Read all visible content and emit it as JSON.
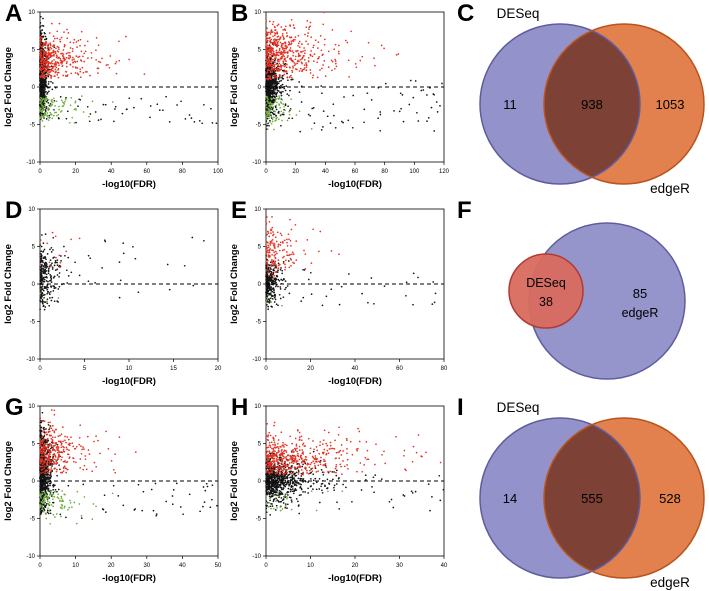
{
  "styles": {
    "background": "#ffffff",
    "point_colors": {
      "black": "#141414",
      "red": "#e63323",
      "green": "#6fae3e"
    },
    "venn": {
      "blue": "#8b89c5",
      "blueStroke": "#5f5d9e",
      "orange": "#e0763f",
      "orangeStroke": "#b9541f",
      "overlap": "#7d4136",
      "red": "#d96a5e",
      "redStroke": "#b03a33",
      "label_color": "#000000"
    }
  },
  "chart_data": [
    {
      "panel_letter": "A",
      "type": "scatter",
      "xlabel": "-log10(FDR)",
      "ylabel": "log2 Fold Change",
      "xlim": [
        0,
        100
      ],
      "ylim": [
        -10,
        10
      ],
      "xticks": [
        0,
        20,
        40,
        60,
        80,
        100
      ],
      "yticks": [
        -10,
        -5,
        0,
        5,
        10
      ],
      "hline": 0,
      "seed": 11,
      "clusters": [
        {
          "color": "black",
          "n": 900,
          "x": {
            "dist": "exp",
            "scale": 1.2,
            "max": 9
          },
          "y": {
            "dist": "normal",
            "mean": 1.3,
            "sd": 2.7,
            "min": -4.5,
            "max": 9.5
          }
        },
        {
          "color": "black",
          "n": 50,
          "x": {
            "dist": "uniform",
            "min": 2,
            "max": 100
          },
          "y": {
            "dist": "uniform",
            "min": -5,
            "max": -1
          }
        },
        {
          "color": "green",
          "n": 110,
          "x": {
            "dist": "exp",
            "scale": 7,
            "max": 42
          },
          "y": {
            "dist": "normal",
            "mean": -2.6,
            "sd": 1.1,
            "min": -6.5,
            "max": -1.2
          }
        },
        {
          "color": "red",
          "n": 380,
          "x": {
            "dist": "exp",
            "scale": 10,
            "max": 62
          },
          "y": {
            "dist": "normal",
            "mean": 3.4,
            "sd": 1.8,
            "min": 1.2,
            "max": 9.3
          }
        }
      ]
    },
    {
      "panel_letter": "B",
      "type": "scatter",
      "xlabel": "-log10(FDR)",
      "ylabel": "log2 Fold Change",
      "xlim": [
        0,
        120
      ],
      "ylim": [
        -10,
        10
      ],
      "xticks": [
        0,
        20,
        40,
        60,
        80,
        100,
        120
      ],
      "yticks": [
        -10,
        -5,
        0,
        5,
        10
      ],
      "hline": 0,
      "seed": 22,
      "clusters": [
        {
          "color": "black",
          "n": 900,
          "x": {
            "dist": "exp",
            "scale": 3,
            "max": 45
          },
          "y": {
            "dist": "normal",
            "mean": 0.3,
            "sd": 1.9,
            "min": -6,
            "max": 7
          }
        },
        {
          "color": "black",
          "n": 70,
          "x": {
            "dist": "uniform",
            "min": 5,
            "max": 120
          },
          "y": {
            "dist": "uniform",
            "min": -6,
            "max": 1
          }
        },
        {
          "color": "green",
          "n": 90,
          "x": {
            "dist": "exp",
            "scale": 6,
            "max": 40
          },
          "y": {
            "dist": "normal",
            "mean": -2.8,
            "sd": 1.2,
            "min": -7,
            "max": -1.2
          }
        },
        {
          "color": "red",
          "n": 520,
          "x": {
            "dist": "exp",
            "scale": 14,
            "max": 118
          },
          "y": {
            "dist": "normal",
            "mean": 4.2,
            "sd": 2.0,
            "min": 1,
            "max": 10
          }
        }
      ]
    },
    {
      "panel_letter": "C",
      "type": "venn",
      "variant": "overlap",
      "left": {
        "name": "DESeq",
        "unique": 11
      },
      "right": {
        "name": "edgeR",
        "unique": 1053
      },
      "overlap": 938
    },
    {
      "panel_letter": "D",
      "type": "scatter",
      "xlabel": "-log10(FDR)",
      "ylabel": "log2 Fold Change",
      "xlim": [
        0,
        20
      ],
      "ylim": [
        -10,
        10
      ],
      "xticks": [
        0,
        5,
        10,
        15,
        20
      ],
      "yticks": [
        -10,
        -5,
        0,
        5,
        10
      ],
      "hline": 0,
      "seed": 33,
      "clusters": [
        {
          "color": "black",
          "n": 260,
          "x": {
            "dist": "exp",
            "scale": 0.7,
            "max": 18
          },
          "y": {
            "dist": "normal",
            "mean": 1.0,
            "sd": 2.4,
            "min": -3.5,
            "max": 8
          }
        },
        {
          "color": "black",
          "n": 26,
          "x": {
            "dist": "uniform",
            "min": 1,
            "max": 19.5
          },
          "y": {
            "dist": "uniform",
            "min": -2,
            "max": 6.5
          }
        },
        {
          "color": "green",
          "n": 4,
          "x": {
            "dist": "exp",
            "scale": 1.2,
            "max": 5
          },
          "y": {
            "dist": "uniform",
            "min": -2.6,
            "max": -1.2
          }
        },
        {
          "color": "red",
          "n": 14,
          "x": {
            "dist": "exp",
            "scale": 1.5,
            "max": 7
          },
          "y": {
            "dist": "uniform",
            "min": 2,
            "max": 7
          }
        }
      ]
    },
    {
      "panel_letter": "E",
      "type": "scatter",
      "xlabel": "-log10(FDR)",
      "ylabel": "log2 Fold Change",
      "xlim": [
        0,
        80
      ],
      "ylim": [
        -10,
        10
      ],
      "xticks": [
        0,
        20,
        40,
        60,
        80
      ],
      "yticks": [
        -10,
        -5,
        0,
        5,
        10
      ],
      "hline": 0,
      "seed": 44,
      "clusters": [
        {
          "color": "black",
          "n": 330,
          "x": {
            "dist": "exp",
            "scale": 2.2,
            "max": 75
          },
          "y": {
            "dist": "normal",
            "mean": 0.2,
            "sd": 1.4,
            "min": -4,
            "max": 4
          }
        },
        {
          "color": "black",
          "n": 26,
          "x": {
            "dist": "uniform",
            "min": 4,
            "max": 78
          },
          "y": {
            "dist": "uniform",
            "min": -3,
            "max": 2
          }
        },
        {
          "color": "green",
          "n": 6,
          "x": {
            "dist": "exp",
            "scale": 2,
            "max": 8
          },
          "y": {
            "dist": "uniform",
            "min": -3,
            "max": -1.2
          }
        },
        {
          "color": "red",
          "n": 160,
          "x": {
            "dist": "exp",
            "scale": 6,
            "max": 34
          },
          "y": {
            "dist": "normal",
            "mean": 4.4,
            "sd": 1.7,
            "min": 1,
            "max": 9.5
          }
        }
      ]
    },
    {
      "panel_letter": "F",
      "type": "venn",
      "variant": "nested",
      "outer": {
        "name": "edgeR",
        "count": 85
      },
      "inner": {
        "name": "DESeq",
        "count": 38
      }
    },
    {
      "panel_letter": "G",
      "type": "scatter",
      "xlabel": "-log10(FDR)",
      "ylabel": "log2 Fold Change",
      "xlim": [
        0,
        50
      ],
      "ylim": [
        -10,
        10
      ],
      "xticks": [
        0,
        10,
        20,
        30,
        40,
        50
      ],
      "yticks": [
        -10,
        -5,
        0,
        5,
        10
      ],
      "hline": 0,
      "seed": 55,
      "clusters": [
        {
          "color": "black",
          "n": 850,
          "x": {
            "dist": "exp",
            "scale": 1.0,
            "max": 8
          },
          "y": {
            "dist": "normal",
            "mean": 1.1,
            "sd": 2.7,
            "min": -4.5,
            "max": 9.3
          }
        },
        {
          "color": "black",
          "n": 45,
          "x": {
            "dist": "uniform",
            "min": 1,
            "max": 50
          },
          "y": {
            "dist": "uniform",
            "min": -5,
            "max": 0
          }
        },
        {
          "color": "green",
          "n": 100,
          "x": {
            "dist": "exp",
            "scale": 3.5,
            "max": 24
          },
          "y": {
            "dist": "normal",
            "mean": -2.6,
            "sd": 1.1,
            "min": -6,
            "max": -1.2
          }
        },
        {
          "color": "red",
          "n": 330,
          "x": {
            "dist": "exp",
            "scale": 5,
            "max": 46
          },
          "y": {
            "dist": "normal",
            "mean": 3.8,
            "sd": 1.9,
            "min": 1,
            "max": 9.5
          }
        }
      ]
    },
    {
      "panel_letter": "H",
      "type": "scatter",
      "xlabel": "-log10(FDR)",
      "ylabel": "log2 Fold Change",
      "xlim": [
        0,
        40
      ],
      "ylim": [
        -10,
        10
      ],
      "xticks": [
        0,
        10,
        20,
        30,
        40
      ],
      "yticks": [
        -10,
        -5,
        0,
        5,
        10
      ],
      "hline": 0,
      "seed": 66,
      "clusters": [
        {
          "color": "black",
          "n": 800,
          "x": {
            "dist": "exp",
            "scale": 3.5,
            "max": 32
          },
          "y": {
            "dist": "normal",
            "mean": 0.2,
            "sd": 1.4,
            "min": -5,
            "max": 5
          }
        },
        {
          "color": "black",
          "n": 40,
          "x": {
            "dist": "uniform",
            "min": 2,
            "max": 40
          },
          "y": {
            "dist": "uniform",
            "min": -4,
            "max": 1
          }
        },
        {
          "color": "green",
          "n": 25,
          "x": {
            "dist": "exp",
            "scale": 4,
            "max": 20
          },
          "y": {
            "dist": "uniform",
            "min": -4,
            "max": -1.2
          }
        },
        {
          "color": "red",
          "n": 480,
          "x": {
            "dist": "exp",
            "scale": 7,
            "max": 40
          },
          "y": {
            "dist": "normal",
            "mean": 2.9,
            "sd": 1.6,
            "min": 0.8,
            "max": 10
          }
        }
      ]
    },
    {
      "panel_letter": "I",
      "type": "venn",
      "variant": "overlap",
      "left": {
        "name": "DESeq",
        "unique": 14
      },
      "right": {
        "name": "edgeR",
        "unique": 528
      },
      "overlap": 555
    }
  ]
}
